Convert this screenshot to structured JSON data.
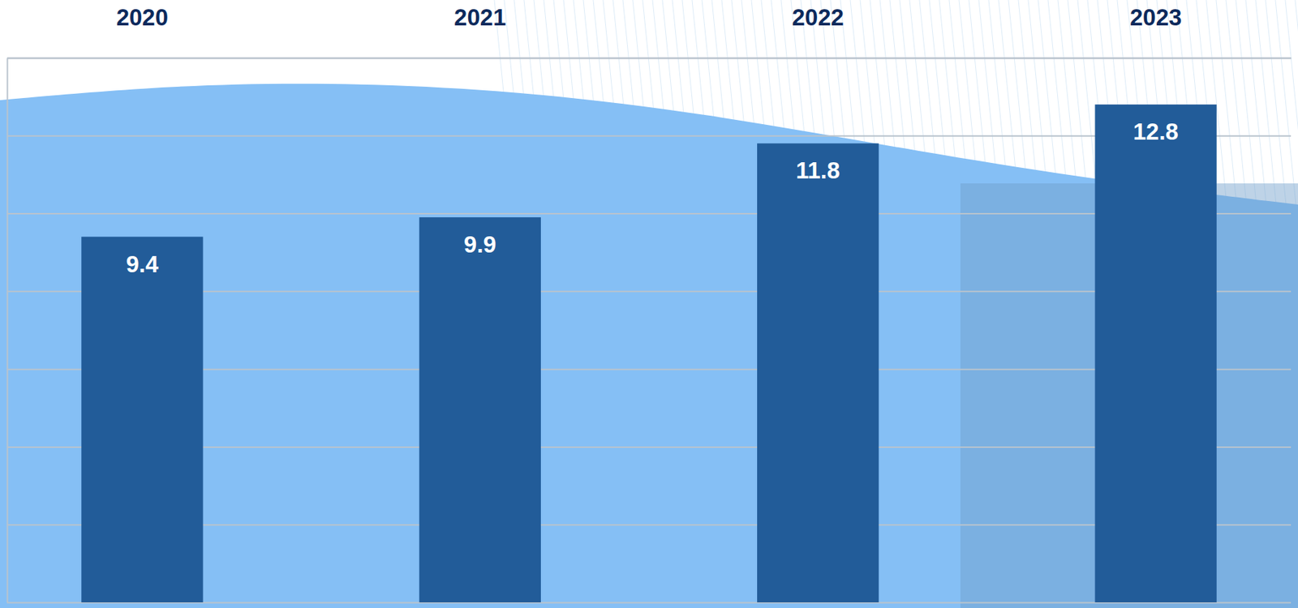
{
  "chart_data": {
    "type": "bar",
    "categories": [
      "2020",
      "2021",
      "2022",
      "2023"
    ],
    "values": [
      9.4,
      9.9,
      11.8,
      12.8
    ],
    "color": "#225c99",
    "ylim": [
      0,
      14
    ],
    "yticks": [
      0,
      2,
      4,
      6,
      8,
      10,
      12,
      14
    ],
    "grid": true,
    "data_labels": true,
    "tick_labels": "x"
  }
}
